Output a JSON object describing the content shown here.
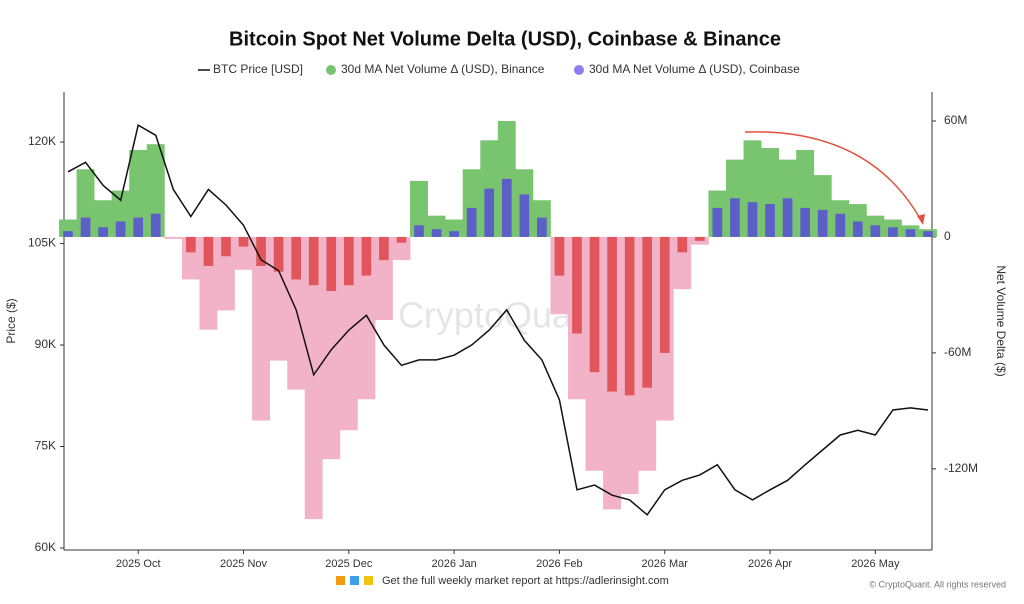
{
  "chart_data": {
    "type": "combo",
    "title": "Bitcoin Spot Net Volume Delta (USD), Coinbase & Binance",
    "ylabel": "Price ($)",
    "y2label": "Net Volume Delta ($)",
    "watermark": "CryptoQuant",
    "footer": "Get the full weekly market report at https://adlerinsight.com",
    "copyright": "© CryptoQuant. All rights reserved",
    "categories": [
      null,
      null,
      null,
      null,
      "2025 Oct",
      null,
      null,
      null,
      null,
      null,
      "2025 Nov",
      null,
      null,
      null,
      null,
      null,
      "2025 Dec",
      null,
      null,
      null,
      null,
      null,
      "2026 Jan",
      null,
      null,
      null,
      null,
      null,
      "2026 Feb",
      null,
      null,
      null,
      null,
      null,
      "2026 Mar",
      null,
      null,
      null,
      null,
      null,
      "2026 Apr",
      null,
      null,
      null,
      null,
      null,
      "2026 May",
      null,
      null,
      null
    ],
    "ylim": [
      59700,
      127400
    ],
    "yticks": [
      {
        "value": 60000,
        "label": "60K"
      },
      {
        "value": 75000,
        "label": "75K"
      },
      {
        "value": 90000,
        "label": "90K"
      },
      {
        "value": 105000,
        "label": "105K"
      },
      {
        "value": 120000,
        "label": "120K"
      }
    ],
    "y2lim": [
      -162,
      75
    ],
    "y2ticks": [
      {
        "value": -120,
        "label": "-120M"
      },
      {
        "value": -60,
        "label": "-60M"
      },
      0,
      {
        "value": 60,
        "label": "60M"
      }
    ],
    "series": [
      {
        "name": "BTC Price [USD]",
        "type": "line",
        "color": "#111111",
        "values": [
          115600,
          117000,
          113600,
          111400,
          122500,
          121000,
          113000,
          109000,
          113000,
          110700,
          107700,
          102600,
          101000,
          95200,
          85600,
          89300,
          92200,
          94400,
          90000,
          87000,
          87800,
          87800,
          88500,
          90000,
          92200,
          95200,
          90700,
          87800,
          81900,
          68600,
          69300,
          67800,
          67100,
          64900,
          68600,
          70000,
          70800,
          72300,
          68600,
          67100,
          68600,
          70000,
          72300,
          74500,
          76700,
          77400,
          76700,
          80400,
          80700,
          80400
        ]
      },
      {
        "name": "30d MA Net Volume Δ (USD), Binance",
        "type": "bar",
        "axis": "y2",
        "color": "#79c46f",
        "negative_color": "#f2b3c9",
        "values": [
          9,
          35,
          19,
          24,
          45,
          48,
          -1,
          -22,
          -48,
          -38,
          -17,
          -95,
          -64,
          -79,
          -146,
          -115,
          -100,
          -84,
          -43,
          -12,
          29,
          11,
          9,
          35,
          50,
          60,
          35,
          19,
          -40,
          -84,
          -121,
          -141,
          -133,
          -121,
          -95,
          -27,
          -4,
          24,
          40,
          50,
          46,
          40,
          45,
          32,
          19,
          17,
          11,
          9,
          6,
          4
        ]
      },
      {
        "name": "30d MA Net Volume Δ (USD), Coinbase",
        "type": "bar",
        "axis": "y2",
        "color": "#5b5fc7",
        "negative_color": "#e0565b",
        "values": [
          3,
          10,
          5,
          8,
          10,
          12,
          0,
          -8,
          -15,
          -10,
          -5,
          -15,
          -18,
          -22,
          -25,
          -28,
          -25,
          -20,
          -12,
          -3,
          6,
          4,
          3,
          15,
          25,
          30,
          22,
          10,
          -20,
          -50,
          -70,
          -80,
          -82,
          -78,
          -60,
          -8,
          -2,
          15,
          20,
          18,
          17,
          20,
          15,
          14,
          12,
          8,
          6,
          5,
          4,
          3
        ]
      }
    ]
  }
}
